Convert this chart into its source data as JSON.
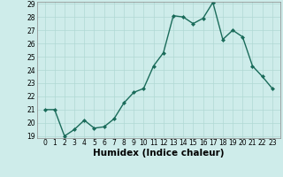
{
  "xlabel": "Humidex (Indice chaleur)",
  "x": [
    0,
    1,
    2,
    3,
    4,
    5,
    6,
    7,
    8,
    9,
    10,
    11,
    12,
    13,
    14,
    15,
    16,
    17,
    18,
    19,
    20,
    21,
    22,
    23
  ],
  "y": [
    21,
    21,
    19,
    19.5,
    20.2,
    19.6,
    19.7,
    20.3,
    21.5,
    22.3,
    22.6,
    24.3,
    25.3,
    28.1,
    28.0,
    27.5,
    27.9,
    29.1,
    26.3,
    27.0,
    26.5,
    24.3,
    23.5,
    22.6
  ],
  "line_color": "#1a6b5a",
  "marker": "D",
  "marker_size": 2.0,
  "line_width": 1.0,
  "bg_color": "#ceecea",
  "grid_color": "#b0d8d4",
  "ylim_min": 19,
  "ylim_max": 29,
  "yticks": [
    19,
    20,
    21,
    22,
    23,
    24,
    25,
    26,
    27,
    28,
    29
  ],
  "xticks": [
    0,
    1,
    2,
    3,
    4,
    5,
    6,
    7,
    8,
    9,
    10,
    11,
    12,
    13,
    14,
    15,
    16,
    17,
    18,
    19,
    20,
    21,
    22,
    23
  ],
  "tick_label_fontsize": 5.5,
  "xlabel_fontsize": 7.5
}
